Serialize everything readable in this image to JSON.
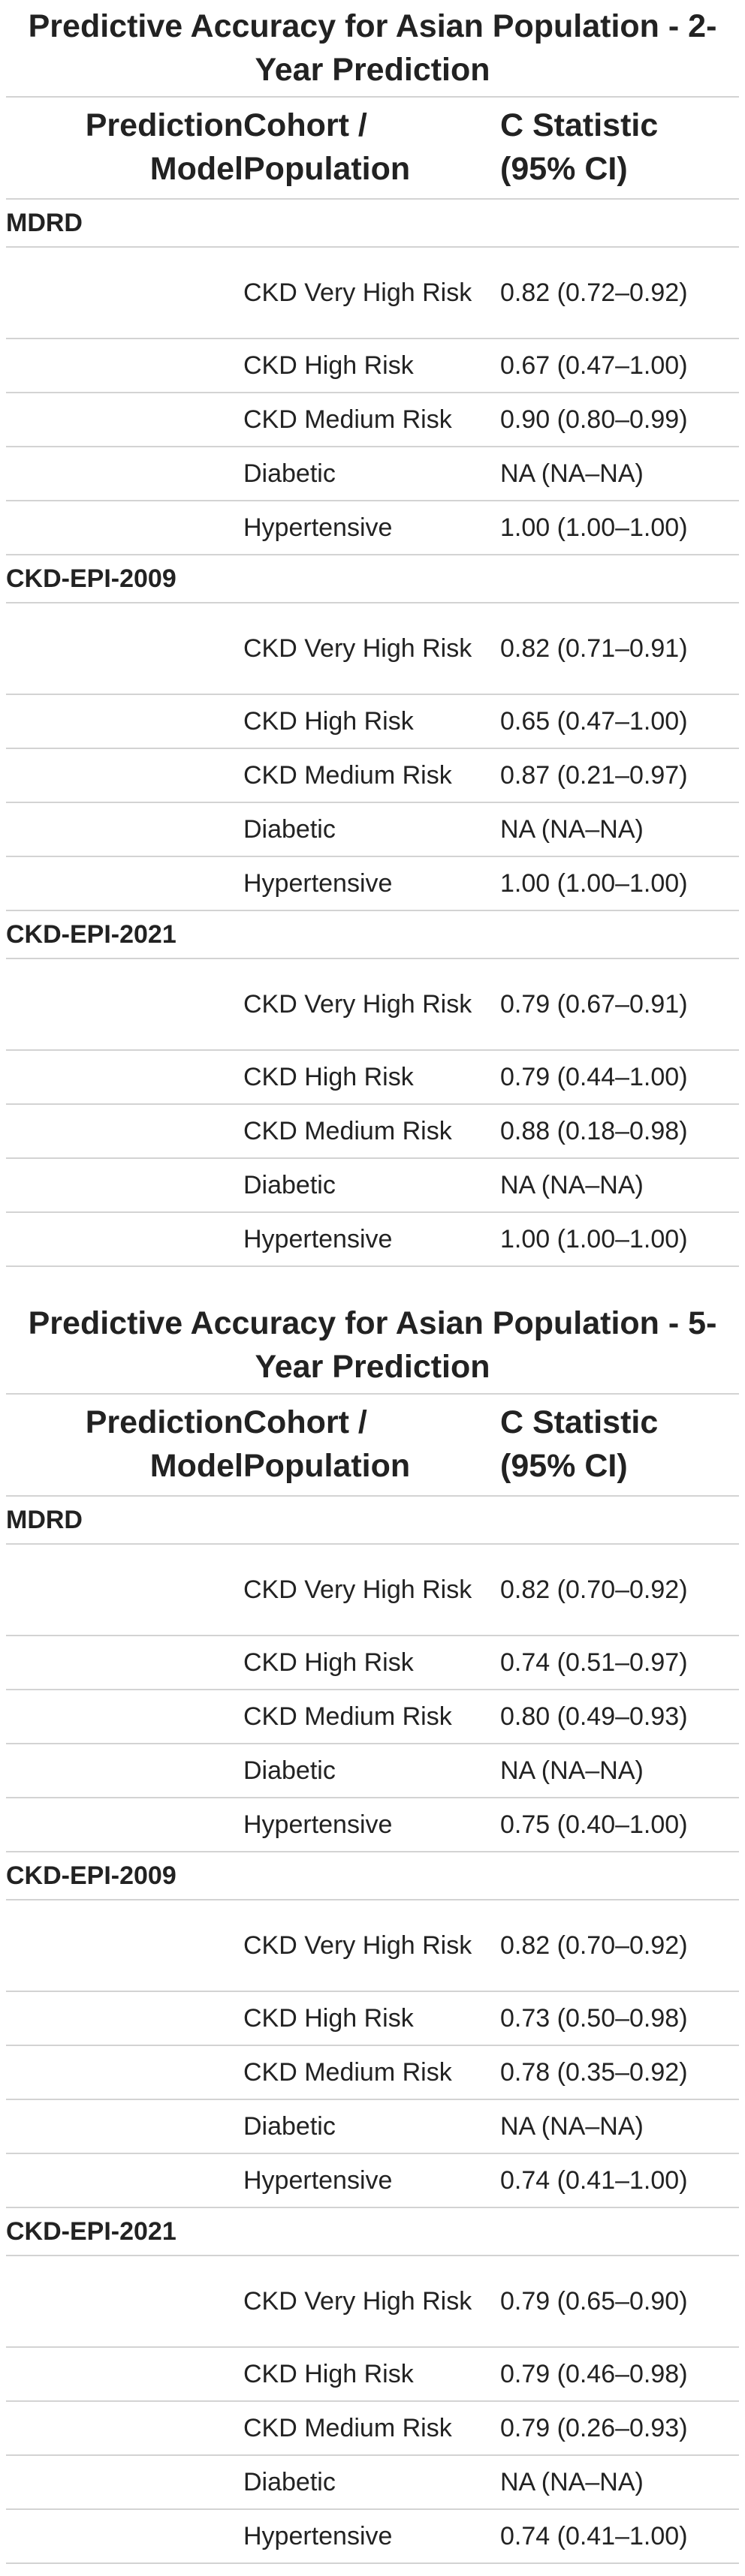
{
  "tables": [
    {
      "title": "Predictive Accuracy for Asian Population - 2-Year Prediction",
      "headers": {
        "model": "Prediction Model",
        "cohort": "Cohort / Population",
        "stat": "C Statistic (95% CI)"
      },
      "groups": [
        {
          "name": "MDRD",
          "rows": [
            {
              "cohort": "CKD Very High Risk",
              "stat": "0.82 (0.72–0.92)"
            },
            {
              "cohort": "CKD High Risk",
              "stat": "0.67 (0.47–1.00)"
            },
            {
              "cohort": "CKD Medium Risk",
              "stat": "0.90 (0.80–0.99)"
            },
            {
              "cohort": "Diabetic",
              "stat": "NA (NA–NA)"
            },
            {
              "cohort": "Hypertensive",
              "stat": "1.00 (1.00–1.00)"
            }
          ]
        },
        {
          "name": "CKD-EPI-2009",
          "rows": [
            {
              "cohort": "CKD Very High Risk",
              "stat": "0.82 (0.71–0.91)"
            },
            {
              "cohort": "CKD High Risk",
              "stat": "0.65 (0.47–1.00)"
            },
            {
              "cohort": "CKD Medium Risk",
              "stat": "0.87 (0.21–0.97)"
            },
            {
              "cohort": "Diabetic",
              "stat": "NA (NA–NA)"
            },
            {
              "cohort": "Hypertensive",
              "stat": "1.00 (1.00–1.00)"
            }
          ]
        },
        {
          "name": "CKD-EPI-2021",
          "rows": [
            {
              "cohort": "CKD Very High Risk",
              "stat": "0.79 (0.67–0.91)"
            },
            {
              "cohort": "CKD High Risk",
              "stat": "0.79 (0.44–1.00)"
            },
            {
              "cohort": "CKD Medium Risk",
              "stat": "0.88 (0.18–0.98)"
            },
            {
              "cohort": "Diabetic",
              "stat": "NA (NA–NA)"
            },
            {
              "cohort": "Hypertensive",
              "stat": "1.00 (1.00–1.00)"
            }
          ]
        }
      ]
    },
    {
      "title": "Predictive Accuracy for Asian Population - 5-Year Prediction",
      "headers": {
        "model": "Prediction Model",
        "cohort": "Cohort / Population",
        "stat": "C Statistic (95% CI)"
      },
      "groups": [
        {
          "name": "MDRD",
          "rows": [
            {
              "cohort": "CKD Very High Risk",
              "stat": "0.82 (0.70–0.92)"
            },
            {
              "cohort": "CKD High Risk",
              "stat": "0.74 (0.51–0.97)"
            },
            {
              "cohort": "CKD Medium Risk",
              "stat": "0.80 (0.49–0.93)"
            },
            {
              "cohort": "Diabetic",
              "stat": "NA (NA–NA)"
            },
            {
              "cohort": "Hypertensive",
              "stat": "0.75 (0.40–1.00)"
            }
          ]
        },
        {
          "name": "CKD-EPI-2009",
          "rows": [
            {
              "cohort": "CKD Very High Risk",
              "stat": "0.82 (0.70–0.92)"
            },
            {
              "cohort": "CKD High Risk",
              "stat": "0.73 (0.50–0.98)"
            },
            {
              "cohort": "CKD Medium Risk",
              "stat": "0.78 (0.35–0.92)"
            },
            {
              "cohort": "Diabetic",
              "stat": "NA (NA–NA)"
            },
            {
              "cohort": "Hypertensive",
              "stat": "0.74 (0.41–1.00)"
            }
          ]
        },
        {
          "name": "CKD-EPI-2021",
          "rows": [
            {
              "cohort": "CKD Very High Risk",
              "stat": "0.79 (0.65–0.90)"
            },
            {
              "cohort": "CKD High Risk",
              "stat": "0.79 (0.46–0.98)"
            },
            {
              "cohort": "CKD Medium Risk",
              "stat": "0.79 (0.26–0.93)"
            },
            {
              "cohort": "Diabetic",
              "stat": "NA (NA–NA)"
            },
            {
              "cohort": "Hypertensive",
              "stat": "0.74 (0.41–1.00)"
            }
          ]
        }
      ]
    }
  ]
}
